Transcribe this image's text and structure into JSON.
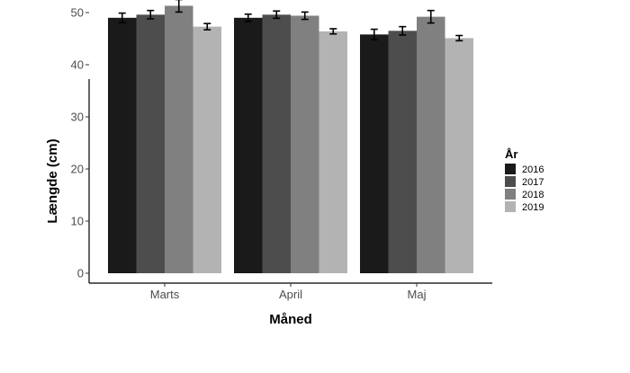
{
  "chart_data": {
    "type": "bar",
    "categories": [
      "Marts",
      "April",
      "Maj"
    ],
    "series": [
      {
        "name": "2016",
        "values": [
          49.0,
          49.0,
          45.8
        ],
        "errors": [
          0.9,
          0.7,
          1.0
        ],
        "color": "#1a1a1a"
      },
      {
        "name": "2017",
        "values": [
          49.6,
          49.6,
          46.5
        ],
        "errors": [
          0.8,
          0.7,
          0.8
        ],
        "color": "#4d4d4d"
      },
      {
        "name": "2018",
        "values": [
          51.3,
          49.4,
          49.2
        ],
        "errors": [
          1.2,
          0.7,
          1.2
        ],
        "color": "#808080"
      },
      {
        "name": "2019",
        "values": [
          47.3,
          46.4,
          45.1
        ],
        "errors": [
          0.6,
          0.5,
          0.5
        ],
        "color": "#b3b3b3"
      }
    ],
    "xlabel": "Måned",
    "ylabel": "Længde (cm)",
    "ylim": [
      0,
      60
    ],
    "yticks": [
      0,
      10,
      20,
      30,
      40,
      50,
      60
    ],
    "legend_title": "År",
    "legend_position": "right",
    "grid": false
  }
}
